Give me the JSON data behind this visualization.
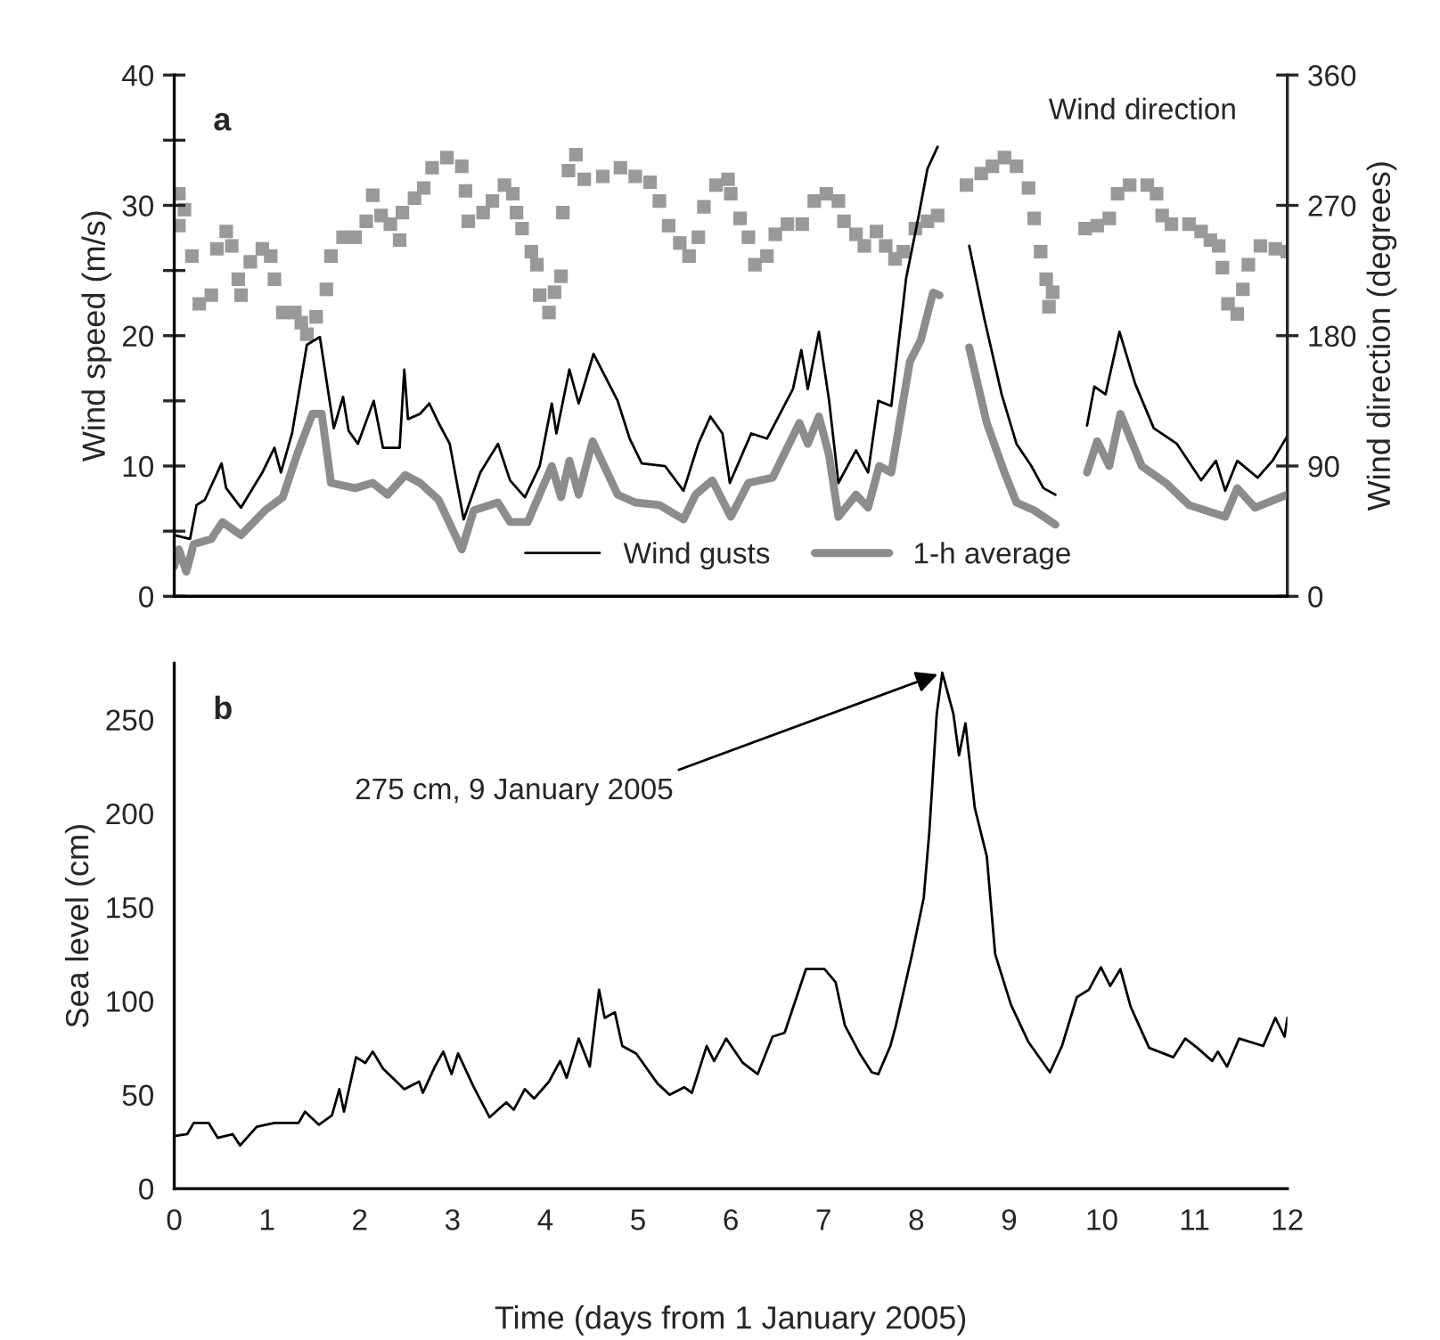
{
  "chart_data": [
    {
      "type": "line",
      "ylabel": "Wind speed (m/s)",
      "y2label": "Wind direction (degrees)",
      "annotations": [
        "a"
      ],
      "xlim": [
        0,
        12
      ],
      "xticks": [
        0,
        1,
        2,
        3,
        4,
        5,
        6,
        7,
        8,
        9,
        10,
        11,
        12
      ],
      "tick_labels": "y",
      "ylim": [
        0,
        40
      ],
      "yticks": [
        0,
        {
          "value": 5,
          "label": null
        },
        10,
        {
          "value": 15,
          "label": null
        },
        20,
        {
          "value": 25,
          "label": null
        },
        30,
        {
          "value": 35,
          "label": null
        },
        40
      ],
      "y2lim": [
        0,
        360
      ],
      "y2ticks": [
        0,
        90,
        180,
        270,
        360
      ],
      "grid": false,
      "legend": "bottom right",
      "series": [
        {
          "name": "Wind gusts",
          "color": "#000000",
          "x": [
            0,
            0.17,
            0.24,
            0.33,
            0.51,
            0.56,
            0.72,
            0.95,
            1.08,
            1.15,
            1.27,
            1.43,
            1.57,
            1.72,
            1.82,
            1.88,
            1.98,
            2.15,
            2.25,
            2.43,
            2.48,
            2.52,
            2.65,
            2.75,
            2.85,
            2.97,
            3.12,
            3.3,
            3.49,
            3.62,
            3.78,
            3.94,
            4.07,
            4.12,
            4.26,
            4.36,
            4.52,
            4.78,
            4.91,
            5.04,
            5.29,
            5.49,
            5.65,
            5.78,
            5.91,
            5.99,
            6.22,
            6.39,
            6.67,
            6.76,
            6.83,
            6.95,
            7.06,
            7.16,
            7.35,
            7.48,
            7.59,
            7.73,
            7.89,
            8.02,
            8.12,
            8.23,
            8.4,
            8.57,
            8.73,
            8.92,
            9.08,
            9.24,
            9.37,
            9.5,
            9.67,
            9.84,
            9.92,
            10.04,
            10.19,
            10.36,
            10.56,
            10.81,
            11.07,
            11.23,
            11.33,
            11.46,
            11.68,
            11.84,
            12.0
          ],
          "values": [
            4.7,
            4.4,
            7.0,
            7.4,
            10.2,
            8.3,
            6.8,
            9.5,
            11.4,
            9.5,
            12.5,
            19.3,
            19.9,
            12.9,
            15.3,
            12.7,
            11.7,
            15.0,
            11.4,
            11.4,
            17.4,
            13.6,
            14.0,
            14.8,
            13.3,
            11.7,
            5.9,
            9.5,
            11.7,
            8.9,
            7.6,
            10.0,
            14.8,
            12.5,
            17.4,
            14.8,
            18.6,
            15.0,
            12.1,
            10.2,
            10.0,
            8.1,
            11.7,
            13.8,
            12.5,
            8.7,
            12.5,
            12.1,
            15.9,
            18.9,
            15.9,
            20.3,
            15.0,
            8.7,
            11.2,
            9.5,
            15.0,
            14.6,
            24.4,
            29.0,
            32.8,
            34.5,
            null,
            26.9,
            21.4,
            15.5,
            11.7,
            10.0,
            8.3,
            7.8,
            null,
            13.1,
            16.1,
            15.5,
            20.3,
            16.3,
            12.9,
            11.7,
            8.9,
            10.4,
            8.1,
            10.4,
            9.1,
            10.4,
            12.3
          ]
        },
        {
          "name": "1-h average",
          "color": "#8c8c8c",
          "x": [
            0,
            0.05,
            0.13,
            0.21,
            0.4,
            0.52,
            0.72,
            0.98,
            1.17,
            1.33,
            1.49,
            1.59,
            1.69,
            1.95,
            2.14,
            2.3,
            2.49,
            2.65,
            2.85,
            3.1,
            3.23,
            3.49,
            3.62,
            3.81,
            4.07,
            4.17,
            4.26,
            4.36,
            4.51,
            4.78,
            4.97,
            5.23,
            5.49,
            5.62,
            5.8,
            6.0,
            6.19,
            6.45,
            6.74,
            6.83,
            6.95,
            7.06,
            7.16,
            7.35,
            7.48,
            7.6,
            7.73,
            7.93,
            8.05,
            8.18,
            8.25,
            8.4,
            8.57,
            8.76,
            8.95,
            9.08,
            9.27,
            9.5,
            9.67,
            9.84,
            9.95,
            10.08,
            10.2,
            10.43,
            10.69,
            10.94,
            11.33,
            11.46,
            11.65,
            12.0
          ],
          "values": [
            2.3,
            3.6,
            1.9,
            4.0,
            4.4,
            5.7,
            4.7,
            6.6,
            7.6,
            11.0,
            14.0,
            14.0,
            8.7,
            8.3,
            8.7,
            7.8,
            9.3,
            8.7,
            7.4,
            3.6,
            6.6,
            7.2,
            5.7,
            5.7,
            10.0,
            7.6,
            10.4,
            7.8,
            11.9,
            7.8,
            7.2,
            7.0,
            5.9,
            7.8,
            8.9,
            6.1,
            8.7,
            9.1,
            13.3,
            11.7,
            13.8,
            10.8,
            6.1,
            7.8,
            6.8,
            10.0,
            9.5,
            18.0,
            19.7,
            23.3,
            23.1,
            null,
            19.1,
            13.3,
            9.5,
            7.2,
            6.6,
            5.5,
            null,
            9.5,
            11.9,
            10.0,
            14.0,
            10.0,
            8.7,
            7.0,
            6.1,
            8.3,
            6.8,
            7.8
          ]
        },
        {
          "name": "Wind direction",
          "type": "scatter",
          "axis": "y2",
          "color": "#999999",
          "marker": "square",
          "x": [
            0.05,
            0.11,
            0.05,
            0.19,
            0.27,
            0.4,
            0.46,
            0.56,
            0.62,
            0.72,
            0.69,
            0.82,
            0.95,
            1.04,
            1.08,
            1.17,
            1.3,
            1.37,
            1.43,
            1.53,
            1.64,
            1.69,
            1.82,
            1.95,
            2.07,
            2.14,
            2.23,
            2.33,
            2.43,
            2.46,
            2.59,
            2.69,
            2.78,
            2.94,
            3.1,
            3.14,
            3.17,
            3.33,
            3.43,
            3.56,
            3.65,
            3.69,
            3.75,
            3.85,
            3.91,
            3.94,
            4.04,
            4.1,
            4.17,
            4.19,
            4.25,
            4.33,
            4.42,
            4.62,
            4.81,
            4.97,
            5.13,
            5.23,
            5.33,
            5.45,
            5.55,
            5.65,
            5.71,
            5.84,
            5.97,
            6.0,
            6.1,
            6.19,
            6.26,
            6.39,
            6.48,
            6.61,
            6.77,
            6.9,
            7.03,
            7.16,
            7.22,
            7.35,
            7.44,
            7.57,
            7.67,
            7.77,
            7.86,
            7.99,
            8.12,
            8.23,
            8.54,
            8.7,
            8.82,
            8.95,
            9.08,
            9.21,
            9.27,
            9.34,
            9.4,
            9.47,
            9.43,
            9.82,
            9.95,
            10.08,
            10.17,
            10.3,
            10.49,
            10.59,
            10.65,
            10.75,
            10.94,
            11.07,
            11.17,
            11.26,
            11.3,
            11.36,
            11.46,
            11.52,
            11.58,
            11.71,
            11.87,
            12.0
          ],
          "values": [
            278,
            267,
            256,
            235,
            202,
            208,
            240,
            252,
            242,
            208,
            219,
            231,
            240,
            235,
            219,
            196,
            196,
            189,
            181,
            193,
            212,
            235,
            248,
            248,
            259,
            277,
            263,
            257,
            246,
            265,
            275,
            282,
            296,
            303,
            297,
            280,
            259,
            265,
            273,
            284,
            278,
            265,
            254,
            238,
            229,
            208,
            196,
            210,
            221,
            265,
            294,
            305,
            288,
            290,
            296,
            290,
            286,
            273,
            256,
            244,
            235,
            248,
            269,
            284,
            288,
            278,
            261,
            248,
            229,
            235,
            250,
            257,
            257,
            273,
            278,
            273,
            259,
            250,
            242,
            252,
            242,
            233,
            238,
            254,
            259,
            263,
            284,
            292,
            297,
            303,
            297,
            282,
            261,
            238,
            219,
            210,
            200,
            254,
            256,
            261,
            278,
            284,
            284,
            278,
            263,
            257,
            257,
            252,
            246,
            242,
            227,
            202,
            195,
            212,
            229,
            242,
            240,
            238
          ]
        }
      ]
    },
    {
      "type": "line",
      "xlabel": "Time (days from 1 January 2005)",
      "ylabel": "Sea level (cm)",
      "annotations": [
        "b",
        {
          "text": "275 cm, 9 January 2005",
          "x": 8.28,
          "y": 275
        }
      ],
      "xlim": [
        0,
        12
      ],
      "xticks": [
        0,
        1,
        2,
        3,
        4,
        5,
        6,
        7,
        8,
        9,
        10,
        11,
        12
      ],
      "ylim": [
        0,
        280
      ],
      "yticks": [
        0,
        50,
        100,
        150,
        200,
        250
      ],
      "grid": false,
      "series": [
        {
          "color": "#000000",
          "x": [
            0,
            0.14,
            0.21,
            0.37,
            0.47,
            0.63,
            0.71,
            0.89,
            1.08,
            1.34,
            1.41,
            1.56,
            1.7,
            1.78,
            1.83,
            1.96,
            2.06,
            2.14,
            2.25,
            2.48,
            2.64,
            2.68,
            2.81,
            2.9,
            2.99,
            3.06,
            3.23,
            3.4,
            3.58,
            3.66,
            3.78,
            3.88,
            4.04,
            4.16,
            4.23,
            4.36,
            4.48,
            4.58,
            4.64,
            4.75,
            4.83,
            4.98,
            5.21,
            5.34,
            5.5,
            5.58,
            5.74,
            5.82,
            5.95,
            6.13,
            6.29,
            6.45,
            6.58,
            6.81,
            7.01,
            7.13,
            7.23,
            7.39,
            7.52,
            7.59,
            7.72,
            7.78,
            7.95,
            8.08,
            8.14,
            8.22,
            8.28,
            8.4,
            8.46,
            8.53,
            8.63,
            8.76,
            8.85,
            9.02,
            9.21,
            9.44,
            9.57,
            9.73,
            9.86,
            9.99,
            10.09,
            10.2,
            10.31,
            10.51,
            10.77,
            10.9,
            11.03,
            11.19,
            11.25,
            11.35,
            11.48,
            11.74,
            11.87,
            11.97,
            12.0
          ],
          "values": [
            28,
            29,
            35,
            35,
            27,
            29,
            23,
            33,
            35,
            35,
            41,
            34,
            39,
            53,
            41,
            70,
            67,
            73,
            64,
            53,
            57,
            51,
            65,
            73,
            61,
            72,
            54,
            38,
            46,
            42,
            53,
            48,
            57,
            68,
            59,
            80,
            65,
            106,
            91,
            94,
            76,
            72,
            56,
            50,
            54,
            51,
            76,
            68,
            80,
            67,
            61,
            81,
            83,
            117,
            117,
            110,
            87,
            72,
            62,
            61,
            76,
            87,
            124,
            155,
            190,
            253,
            275,
            253,
            231,
            248,
            203,
            177,
            125,
            98,
            78,
            62,
            76,
            102,
            106,
            118,
            108,
            117,
            97,
            75,
            70,
            80,
            75,
            68,
            73,
            65,
            80,
            76,
            91,
            81,
            91
          ]
        }
      ]
    }
  ]
}
